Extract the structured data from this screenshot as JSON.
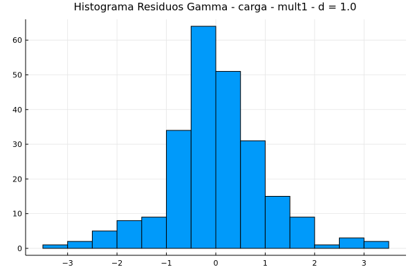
{
  "chart_data": {
    "type": "bar",
    "title": "Histograma Residuos Gamma - carga - mult1 - d = 1.0",
    "xlabel": "",
    "ylabel": "",
    "bin_edges": [
      -3.5,
      -3.0,
      -2.5,
      -2.0,
      -1.5,
      -1.0,
      -0.5,
      0.0,
      0.5,
      1.0,
      1.5,
      2.0,
      2.5,
      3.0,
      3.5
    ],
    "values": [
      1,
      2,
      5,
      8,
      9,
      34,
      64,
      51,
      31,
      15,
      9,
      1,
      3,
      2
    ],
    "xlim": [
      -3.85,
      3.85
    ],
    "ylim": [
      -2,
      66
    ],
    "xticks": [
      -3,
      -2,
      -1,
      0,
      1,
      2,
      3
    ],
    "yticks": [
      0,
      10,
      20,
      30,
      40,
      50,
      60
    ],
    "grid": true,
    "legend": "none",
    "bar_color": "#009AFA"
  }
}
